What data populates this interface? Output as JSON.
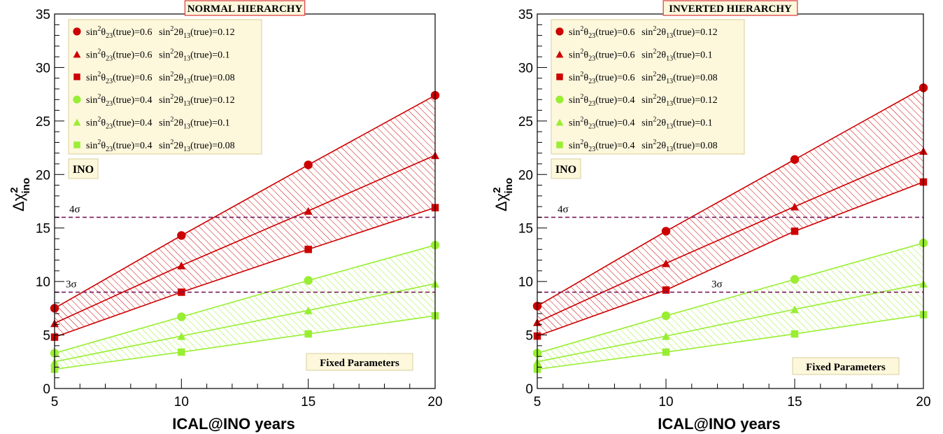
{
  "colors": {
    "red": "#cc0000",
    "green": "#99ee33",
    "sigma_line": "#7a1a5e",
    "box_fill": "#fdf7dc",
    "box_border": "#d8cf9a",
    "title_border": "#e05050"
  },
  "common": {
    "xlabel": "ICAL@INO years",
    "ylabel_main": "Δχ",
    "ylabel_sup": "2",
    "ylabel_sub": "ino",
    "x_ticks": [
      "5",
      "10",
      "15",
      "20"
    ],
    "y_ticks": [
      "0",
      "5",
      "10",
      "15",
      "20",
      "25",
      "30",
      "35"
    ],
    "ino_label": "INO",
    "fixed_label": "Fixed Parameters",
    "sigma4": "4σ",
    "sigma3": "3σ",
    "legend_prefix": "sin",
    "legend_sup": "2",
    "legend_theta23": "θ",
    "legend_sub23": "23",
    "legend_true": "(true)=",
    "legend_2theta13": "2θ",
    "legend_sub13": "13"
  },
  "panels": [
    {
      "title": "NORMAL HIERARCHY",
      "legend": [
        {
          "t23": "0.6",
          "t13": "0.12"
        },
        {
          "t23": "0.6",
          "t13": "0.1"
        },
        {
          "t23": "0.6",
          "t13": "0.08"
        },
        {
          "t23": "0.4",
          "t13": "0.12"
        },
        {
          "t23": "0.4",
          "t13": "0.1"
        },
        {
          "t23": "0.4",
          "t13": "0.08"
        }
      ]
    },
    {
      "title": "INVERTED HIERARCHY",
      "legend": [
        {
          "t23": "0.6",
          "t13": "0.12"
        },
        {
          "t23": "0.6",
          "t13": "0.1"
        },
        {
          "t23": "0.6",
          "t13": "0.08"
        },
        {
          "t23": "0.4",
          "t13": "0.12"
        },
        {
          "t23": "0.4",
          "t13": "0.1"
        },
        {
          "t23": "0.4",
          "t13": "0.08"
        }
      ]
    }
  ],
  "chart_data": [
    {
      "type": "line",
      "title": "NORMAL HIERARCHY",
      "xlabel": "ICAL@INO years",
      "ylabel": "Δχ²_ino",
      "xlim": [
        5,
        20
      ],
      "ylim": [
        0,
        35
      ],
      "x": [
        5,
        10,
        15,
        20
      ],
      "hlines": [
        {
          "y": 16,
          "label": "4σ"
        },
        {
          "y": 9,
          "label": "3σ"
        }
      ],
      "series": [
        {
          "name": "sin²θ23(true)=0.6 sin²2θ13(true)=0.12",
          "marker": "circle",
          "color": "red",
          "values": [
            7.5,
            14.3,
            20.9,
            27.4
          ]
        },
        {
          "name": "sin²θ23(true)=0.6 sin²2θ13(true)=0.1",
          "marker": "triangle",
          "color": "red",
          "values": [
            6.1,
            11.5,
            16.6,
            21.8
          ]
        },
        {
          "name": "sin²θ23(true)=0.6 sin²2θ13(true)=0.08",
          "marker": "square",
          "color": "red",
          "values": [
            4.8,
            9.0,
            13.0,
            16.9
          ]
        },
        {
          "name": "sin²θ23(true)=0.4 sin²2θ13(true)=0.12",
          "marker": "circle",
          "color": "green",
          "values": [
            3.3,
            6.7,
            10.1,
            13.4
          ]
        },
        {
          "name": "sin²θ23(true)=0.4 sin²2θ13(true)=0.1",
          "marker": "triangle",
          "color": "green",
          "values": [
            2.5,
            4.9,
            7.3,
            9.8
          ]
        },
        {
          "name": "sin²θ23(true)=0.4 sin²2θ13(true)=0.08",
          "marker": "square",
          "color": "green",
          "values": [
            1.8,
            3.4,
            5.1,
            6.8
          ]
        }
      ]
    },
    {
      "type": "line",
      "title": "INVERTED HIERARCHY",
      "xlabel": "ICAL@INO years",
      "ylabel": "Δχ²_ino",
      "xlim": [
        5,
        20
      ],
      "ylim": [
        0,
        35
      ],
      "x": [
        5,
        10,
        15,
        20
      ],
      "hlines": [
        {
          "y": 16,
          "label": "4σ"
        },
        {
          "y": 9,
          "label": "3σ"
        }
      ],
      "series": [
        {
          "name": "sin²θ23(true)=0.6 sin²2θ13(true)=0.12",
          "marker": "circle",
          "color": "red",
          "values": [
            7.7,
            14.7,
            21.4,
            28.1
          ]
        },
        {
          "name": "sin²θ23(true)=0.6 sin²2θ13(true)=0.1",
          "marker": "triangle",
          "color": "red",
          "values": [
            6.2,
            11.7,
            17.0,
            22.2
          ]
        },
        {
          "name": "sin²θ23(true)=0.6 sin²2θ13(true)=0.08",
          "marker": "square",
          "color": "red",
          "values": [
            4.9,
            9.2,
            14.7,
            19.3
          ]
        },
        {
          "name": "sin²θ23(true)=0.4 sin²2θ13(true)=0.12",
          "marker": "circle",
          "color": "green",
          "values": [
            3.3,
            6.8,
            10.2,
            13.6
          ]
        },
        {
          "name": "sin²θ23(true)=0.4 sin²2θ13(true)=0.1",
          "marker": "triangle",
          "color": "green",
          "values": [
            2.5,
            4.9,
            7.4,
            9.8
          ]
        },
        {
          "name": "sin²θ23(true)=0.4 sin²2θ13(true)=0.08",
          "marker": "square",
          "color": "green",
          "values": [
            1.8,
            3.4,
            5.1,
            6.9
          ]
        }
      ]
    }
  ]
}
